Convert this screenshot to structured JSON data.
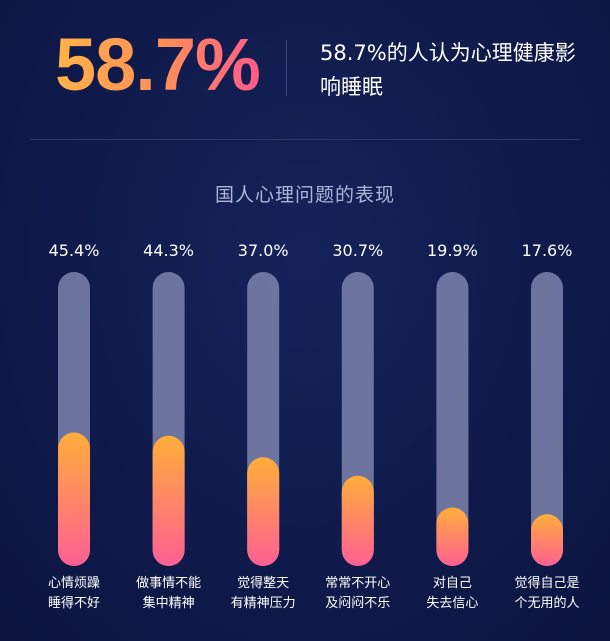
{
  "header": {
    "big_stat": "58.7%",
    "headline": "58.7%的人认为心理健康影响睡眠"
  },
  "colors": {
    "background": "#0f1a4a",
    "track": "#7d84ad",
    "fill_top": "#ffae3a",
    "fill_bottom": "#ff5f93"
  },
  "chart_data": {
    "type": "bar",
    "title": "国人心理问题的表现",
    "categories": [
      [
        "心情烦躁",
        "睡得不好"
      ],
      [
        "做事情不能",
        "集中精神"
      ],
      [
        "觉得整天",
        "有精神压力"
      ],
      [
        "常常不开心",
        "及闷闷不乐"
      ],
      [
        "对自己",
        "失去信心"
      ],
      [
        "觉得自己是",
        "个无用的人"
      ]
    ],
    "values": [
      45.4,
      44.3,
      37.0,
      30.7,
      19.9,
      17.6
    ],
    "value_labels": [
      "45.4%",
      "44.3%",
      "37.0%",
      "30.7%",
      "19.9%",
      "17.6%"
    ],
    "ylim": [
      0,
      100
    ],
    "grid": false
  }
}
